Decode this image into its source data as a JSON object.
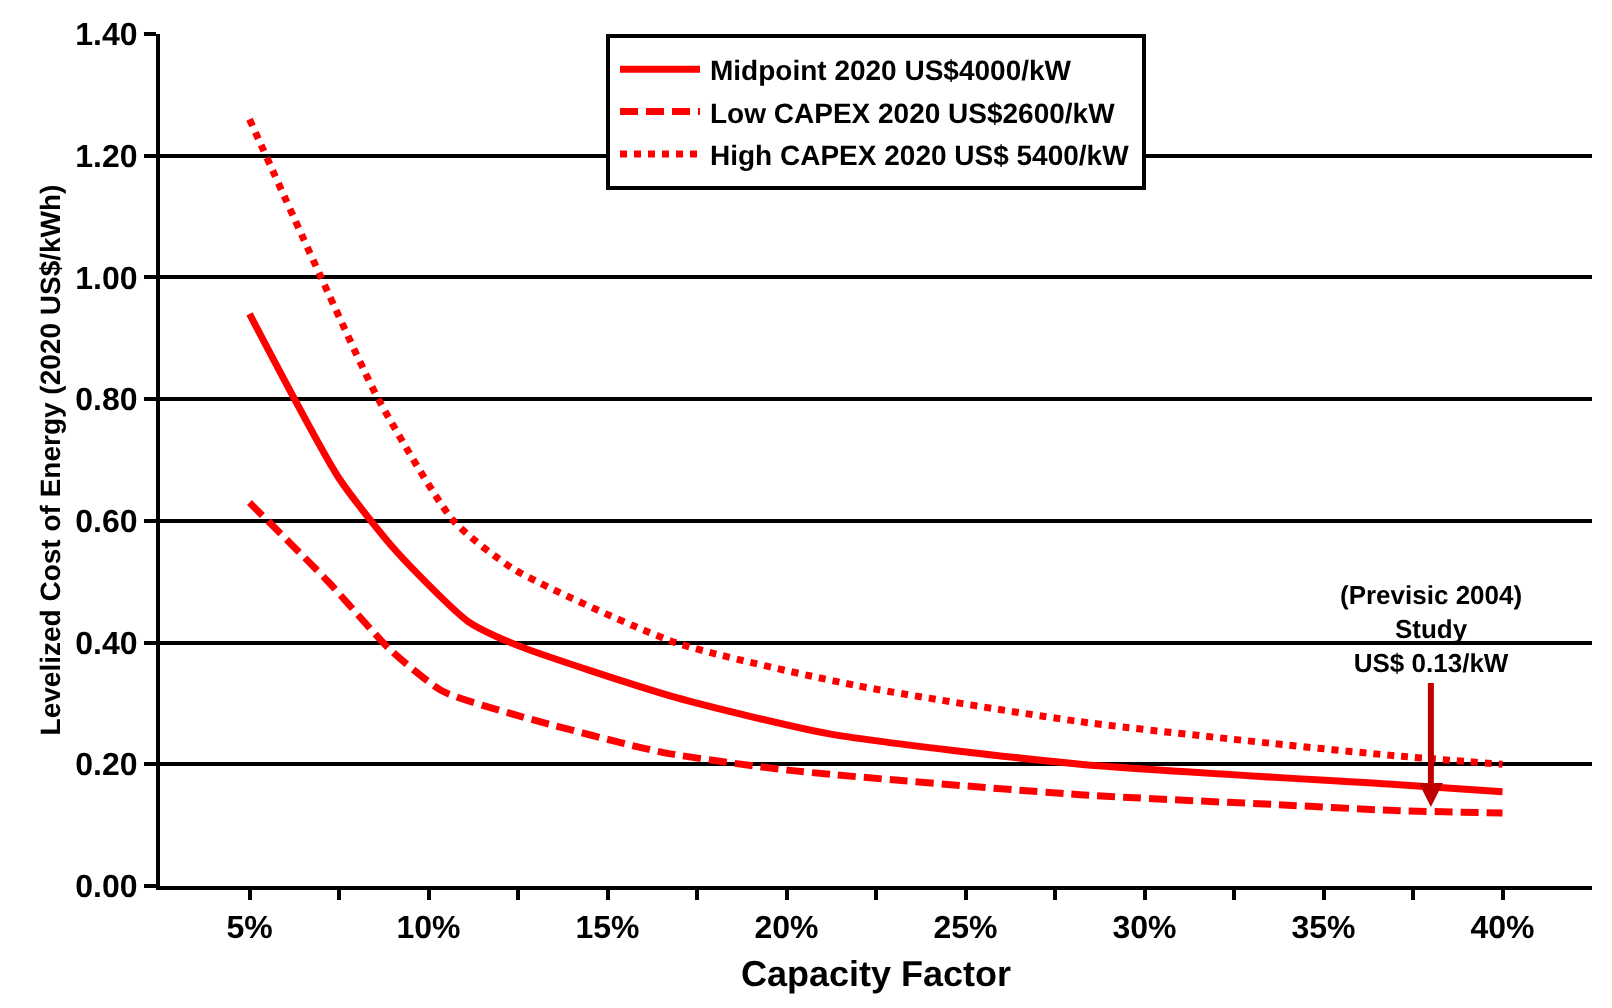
{
  "chart_data": {
    "type": "line",
    "xlabel": "Capacity Factor",
    "ylabel": "Levelized Cost of Energy (2020 US$/kWh)",
    "xlim": [
      0.025,
      0.425
    ],
    "xticks": [
      {
        "value": 0.05,
        "label": "5%"
      },
      {
        "value": 0.075,
        "label": null
      },
      {
        "value": 0.1,
        "label": "10%"
      },
      {
        "value": 0.125,
        "label": null
      },
      {
        "value": 0.15,
        "label": "15%"
      },
      {
        "value": 0.175,
        "label": null
      },
      {
        "value": 0.2,
        "label": "20%"
      },
      {
        "value": 0.225,
        "label": null
      },
      {
        "value": 0.25,
        "label": "25%"
      },
      {
        "value": 0.275,
        "label": null
      },
      {
        "value": 0.3,
        "label": "30%"
      },
      {
        "value": 0.325,
        "label": null
      },
      {
        "value": 0.35,
        "label": "35%"
      },
      {
        "value": 0.375,
        "label": null
      },
      {
        "value": 0.4,
        "label": "40%"
      }
    ],
    "ylim": [
      0,
      1.4
    ],
    "yticks": [
      {
        "value": 0,
        "label": "0.00"
      },
      {
        "value": 0.2,
        "label": "0.20"
      },
      {
        "value": 0.4,
        "label": "0.40"
      },
      {
        "value": 0.6,
        "label": "0.60"
      },
      {
        "value": 0.8,
        "label": "0.80"
      },
      {
        "value": 1.0,
        "label": "1.00"
      },
      {
        "value": 1.2,
        "label": "1.20"
      },
      {
        "value": 1.4,
        "label": "1.40"
      }
    ],
    "grid": "y",
    "legend": "top",
    "marker": "none",
    "series": [
      {
        "name": "Midpoint 2020 US$4000/kW",
        "color": "#ff0000",
        "line_style": "solid",
        "x": [
          0.05,
          0.075,
          0.091,
          0.111,
          0.125,
          0.169,
          0.212,
          0.282,
          0.369,
          0.4
        ],
        "values": [
          0.94,
          0.67,
          0.55,
          0.435,
          0.395,
          0.31,
          0.25,
          0.2,
          0.167,
          0.155
        ]
      },
      {
        "name": "Low CAPEX 2020 US$2600/kW",
        "color": "#ff0000",
        "line_style": "dashed",
        "x": [
          0.05,
          0.072,
          0.089,
          0.104,
          0.125,
          0.165,
          0.201,
          0.282,
          0.336,
          0.37,
          0.4
        ],
        "values": [
          0.63,
          0.5,
          0.39,
          0.32,
          0.28,
          0.22,
          0.19,
          0.15,
          0.134,
          0.124,
          0.12
        ]
      },
      {
        "name": "High CAPEX 2020 US$ 5400/kW",
        "color": "#ff0000",
        "line_style": "dotted",
        "x": [
          0.05,
          0.07,
          0.086,
          0.107,
          0.124,
          0.169,
          0.219,
          0.282,
          0.336,
          0.37,
          0.4
        ],
        "values": [
          1.26,
          1.0,
          0.8,
          0.6,
          0.52,
          0.4,
          0.33,
          0.27,
          0.234,
          0.214,
          0.2
        ]
      }
    ],
    "annotations": [
      {
        "text": "(Previsic 2004)\nStudy\nUS$ 0.13/kW",
        "x": 0.38,
        "y": 0.13
      }
    ]
  }
}
